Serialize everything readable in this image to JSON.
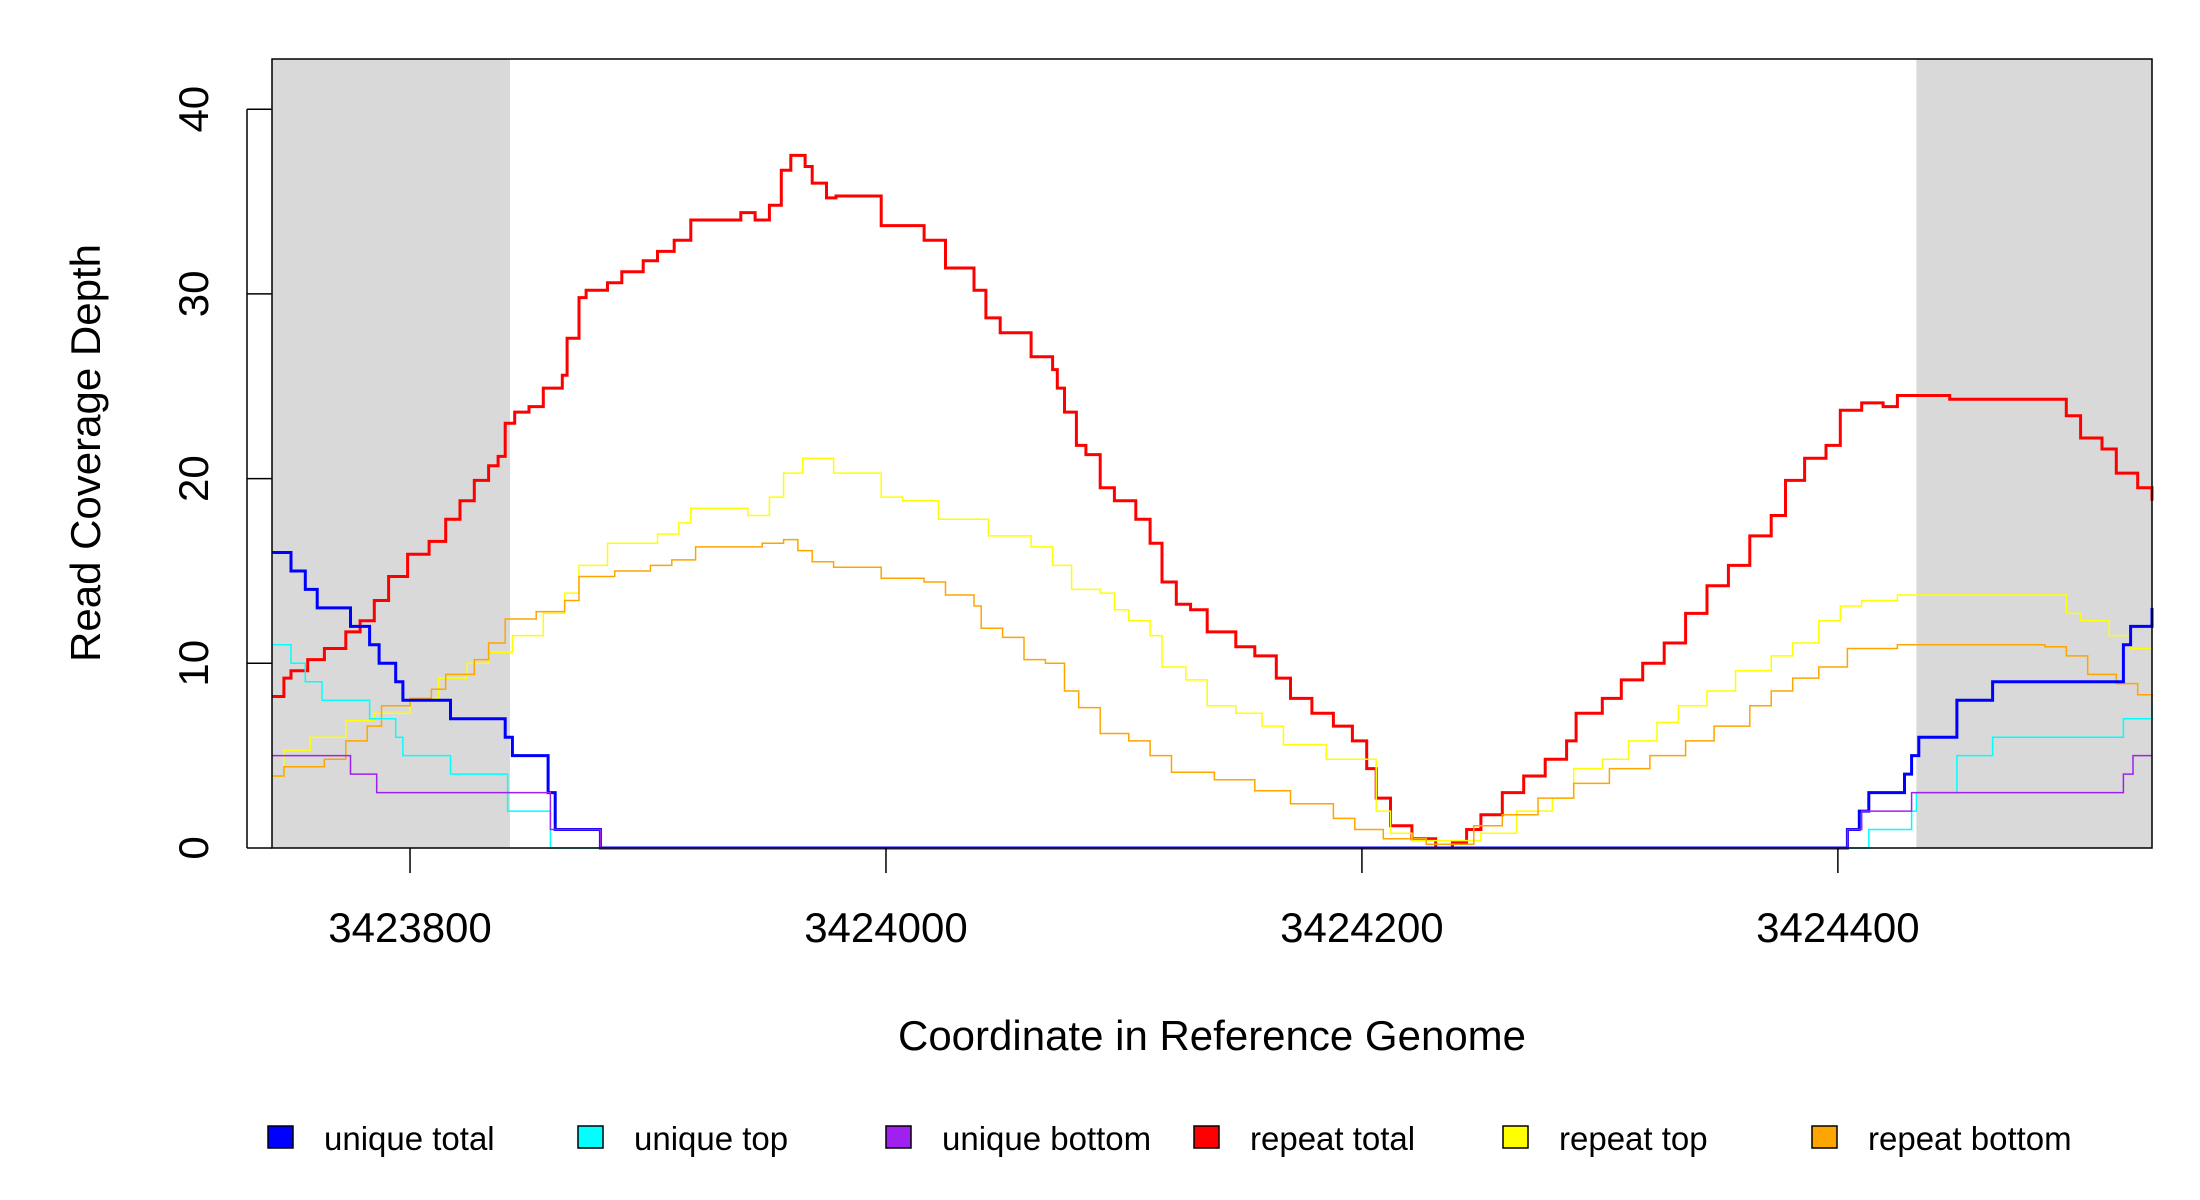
{
  "chart_data": {
    "type": "line",
    "step": true,
    "title": "",
    "xlabel": "Coordinate in Reference Genome",
    "ylabel": "Read Coverage Depth",
    "xlim": [
      3423742,
      3424532
    ],
    "ylim": [
      0,
      42.5
    ],
    "xticks": [
      3423800,
      3424000,
      3424200,
      3424400
    ],
    "xtick_labels": [
      "3423800",
      "3424000",
      "3424200",
      "3424400"
    ],
    "yticks": [
      0,
      10,
      20,
      30,
      40
    ],
    "ytick_labels": [
      "0",
      "10",
      "20",
      "30",
      "40"
    ],
    "grid": false,
    "legend_position": "bottom",
    "shaded_regions": [
      [
        3423742,
        3423842
      ],
      [
        3424433,
        3424532
      ]
    ],
    "shade_color": "#d9d9d9",
    "series": [
      {
        "name": "repeat total",
        "color": "#ff0000",
        "width": 3,
        "points": [
          [
            3423742,
            8.2
          ],
          [
            3423747,
            9.2
          ],
          [
            3423750,
            9.6
          ],
          [
            3423757,
            10.2
          ],
          [
            3423764,
            10.8
          ],
          [
            3423773,
            11.7
          ],
          [
            3423779,
            12.3
          ],
          [
            3423785,
            13.4
          ],
          [
            3423791,
            14.7
          ],
          [
            3423799,
            15.9
          ],
          [
            3423808,
            16.6
          ],
          [
            3423815,
            17.8
          ],
          [
            3423821,
            18.8
          ],
          [
            3423827,
            19.9
          ],
          [
            3423833,
            20.7
          ],
          [
            3423837,
            21.2
          ],
          [
            3423840,
            23.0
          ],
          [
            3423844,
            23.6
          ],
          [
            3423850,
            23.9
          ],
          [
            3423856,
            24.9
          ],
          [
            3423864,
            25.6
          ],
          [
            3423866,
            27.6
          ],
          [
            3423871,
            29.8
          ],
          [
            3423874,
            30.2
          ],
          [
            3423883,
            30.6
          ],
          [
            3423889,
            31.2
          ],
          [
            3423898,
            31.8
          ],
          [
            3423904,
            32.3
          ],
          [
            3423911,
            32.9
          ],
          [
            3423918,
            34.0
          ],
          [
            3423939,
            34.4
          ],
          [
            3423945,
            34.0
          ],
          [
            3423951,
            34.8
          ],
          [
            3423956,
            36.7
          ],
          [
            3423960,
            37.5
          ],
          [
            3423966,
            36.9
          ],
          [
            3423969,
            36.0
          ],
          [
            3423975,
            35.2
          ],
          [
            3423979,
            35.3
          ],
          [
            3423998,
            33.7
          ],
          [
            3424007,
            33.7
          ],
          [
            3424016,
            32.9
          ],
          [
            3424025,
            31.4
          ],
          [
            3424037,
            30.2
          ],
          [
            3424042,
            28.7
          ],
          [
            3424048,
            27.9
          ],
          [
            3424061,
            26.6
          ],
          [
            3424070,
            25.9
          ],
          [
            3424072,
            24.9
          ],
          [
            3424075,
            23.6
          ],
          [
            3424080,
            21.8
          ],
          [
            3424084,
            21.3
          ],
          [
            3424090,
            19.5
          ],
          [
            3424096,
            18.8
          ],
          [
            3424105,
            17.8
          ],
          [
            3424111,
            16.5
          ],
          [
            3424116,
            14.4
          ],
          [
            3424122,
            13.2
          ],
          [
            3424128,
            12.9
          ],
          [
            3424135,
            11.7
          ],
          [
            3424147,
            10.9
          ],
          [
            3424155,
            10.4
          ],
          [
            3424164,
            9.2
          ],
          [
            3424170,
            8.1
          ],
          [
            3424179,
            7.3
          ],
          [
            3424188,
            6.6
          ],
          [
            3424196,
            5.8
          ],
          [
            3424202,
            4.3
          ],
          [
            3424206,
            2.7
          ],
          [
            3424212,
            1.2
          ],
          [
            3424221,
            0.5
          ],
          [
            3424231,
            0.0
          ],
          [
            3424238,
            0.3
          ],
          [
            3424244,
            1.0
          ],
          [
            3424250,
            1.8
          ],
          [
            3424259,
            3.0
          ],
          [
            3424268,
            3.9
          ],
          [
            3424277,
            4.8
          ],
          [
            3424286,
            5.8
          ],
          [
            3424290,
            7.3
          ],
          [
            3424301,
            8.1
          ],
          [
            3424309,
            9.1
          ],
          [
            3424318,
            10.0
          ],
          [
            3424327,
            11.1
          ],
          [
            3424336,
            12.7
          ],
          [
            3424345,
            14.2
          ],
          [
            3424354,
            15.3
          ],
          [
            3424363,
            16.9
          ],
          [
            3424372,
            18.0
          ],
          [
            3424378,
            19.9
          ],
          [
            3424386,
            21.1
          ],
          [
            3424395,
            21.8
          ],
          [
            3424401,
            23.7
          ],
          [
            3424410,
            24.1
          ],
          [
            3424419,
            23.9
          ],
          [
            3424425,
            24.5
          ],
          [
            3424447,
            24.3
          ],
          [
            3424487,
            24.3
          ],
          [
            3424496,
            23.4
          ],
          [
            3424502,
            22.2
          ],
          [
            3424511,
            21.6
          ],
          [
            3424517,
            20.3
          ],
          [
            3424526,
            19.5
          ],
          [
            3424532,
            18.8
          ]
        ]
      },
      {
        "name": "repeat top",
        "color": "#ffff00",
        "width": 1.5,
        "points": [
          [
            3423742,
            3.9
          ],
          [
            3423747,
            5.3
          ],
          [
            3423758,
            6.0
          ],
          [
            3423773,
            6.9
          ],
          [
            3423785,
            7.3
          ],
          [
            3423800,
            8.1
          ],
          [
            3423812,
            9.2
          ],
          [
            3423824,
            10.0
          ],
          [
            3423833,
            10.6
          ],
          [
            3423843,
            11.5
          ],
          [
            3423856,
            12.7
          ],
          [
            3423865,
            13.8
          ],
          [
            3423871,
            15.3
          ],
          [
            3423883,
            16.5
          ],
          [
            3423904,
            17.0
          ],
          [
            3423913,
            17.6
          ],
          [
            3423918,
            18.4
          ],
          [
            3423942,
            18.0
          ],
          [
            3423951,
            19.0
          ],
          [
            3423957,
            20.3
          ],
          [
            3423965,
            21.1
          ],
          [
            3423978,
            20.3
          ],
          [
            3423998,
            19.0
          ],
          [
            3424007,
            18.8
          ],
          [
            3424022,
            17.8
          ],
          [
            3424043,
            16.9
          ],
          [
            3424061,
            16.3
          ],
          [
            3424070,
            15.3
          ],
          [
            3424078,
            14.0
          ],
          [
            3424090,
            13.8
          ],
          [
            3424096,
            12.9
          ],
          [
            3424102,
            12.3
          ],
          [
            3424111,
            11.5
          ],
          [
            3424116,
            9.8
          ],
          [
            3424126,
            9.1
          ],
          [
            3424135,
            7.7
          ],
          [
            3424147,
            7.3
          ],
          [
            3424158,
            6.6
          ],
          [
            3424167,
            5.6
          ],
          [
            3424185,
            4.8
          ],
          [
            3424200,
            4.8
          ],
          [
            3424206,
            2.0
          ],
          [
            3424212,
            0.8
          ],
          [
            3424221,
            0.4
          ],
          [
            3424250,
            0.8
          ],
          [
            3424265,
            2.0
          ],
          [
            3424280,
            2.7
          ],
          [
            3424289,
            4.3
          ],
          [
            3424301,
            4.8
          ],
          [
            3424312,
            5.8
          ],
          [
            3424324,
            6.8
          ],
          [
            3424333,
            7.7
          ],
          [
            3424345,
            8.5
          ],
          [
            3424357,
            9.6
          ],
          [
            3424372,
            10.4
          ],
          [
            3424381,
            11.1
          ],
          [
            3424392,
            12.3
          ],
          [
            3424401,
            13.1
          ],
          [
            3424410,
            13.4
          ],
          [
            3424425,
            13.7
          ],
          [
            3424496,
            12.7
          ],
          [
            3424502,
            12.3
          ],
          [
            3424514,
            11.5
          ],
          [
            3424523,
            10.8
          ],
          [
            3424532,
            10.8
          ]
        ]
      },
      {
        "name": "repeat bottom",
        "color": "#ffa500",
        "width": 1.5,
        "points": [
          [
            3423742,
            3.9
          ],
          [
            3423747,
            4.4
          ],
          [
            3423764,
            4.8
          ],
          [
            3423773,
            5.8
          ],
          [
            3423782,
            6.6
          ],
          [
            3423788,
            7.7
          ],
          [
            3423800,
            8.1
          ],
          [
            3423809,
            8.6
          ],
          [
            3423815,
            9.4
          ],
          [
            3423827,
            10.2
          ],
          [
            3423833,
            11.1
          ],
          [
            3423840,
            12.4
          ],
          [
            3423853,
            12.8
          ],
          [
            3423865,
            13.4
          ],
          [
            3423871,
            14.7
          ],
          [
            3423886,
            15.0
          ],
          [
            3423901,
            15.3
          ],
          [
            3423910,
            15.6
          ],
          [
            3423920,
            16.3
          ],
          [
            3423948,
            16.5
          ],
          [
            3423957,
            16.7
          ],
          [
            3423963,
            16.1
          ],
          [
            3423969,
            15.5
          ],
          [
            3423978,
            15.2
          ],
          [
            3423998,
            14.6
          ],
          [
            3424016,
            14.4
          ],
          [
            3424025,
            13.7
          ],
          [
            3424037,
            13.1
          ],
          [
            3424040,
            11.9
          ],
          [
            3424049,
            11.4
          ],
          [
            3424058,
            10.2
          ],
          [
            3424067,
            10.0
          ],
          [
            3424075,
            8.5
          ],
          [
            3424081,
            7.6
          ],
          [
            3424090,
            6.2
          ],
          [
            3424102,
            5.8
          ],
          [
            3424111,
            5.0
          ],
          [
            3424120,
            4.1
          ],
          [
            3424138,
            3.7
          ],
          [
            3424155,
            3.1
          ],
          [
            3424170,
            2.4
          ],
          [
            3424188,
            1.6
          ],
          [
            3424197,
            1.0
          ],
          [
            3424209,
            0.5
          ],
          [
            3424227,
            0.2
          ],
          [
            3424247,
            1.2
          ],
          [
            3424259,
            1.8
          ],
          [
            3424274,
            2.7
          ],
          [
            3424289,
            3.5
          ],
          [
            3424304,
            4.3
          ],
          [
            3424321,
            5.0
          ],
          [
            3424336,
            5.8
          ],
          [
            3424348,
            6.6
          ],
          [
            3424363,
            7.7
          ],
          [
            3424372,
            8.5
          ],
          [
            3424381,
            9.2
          ],
          [
            3424392,
            9.8
          ],
          [
            3424404,
            10.8
          ],
          [
            3424425,
            11.0
          ],
          [
            3424487,
            10.9
          ],
          [
            3424496,
            10.4
          ],
          [
            3424505,
            9.4
          ],
          [
            3424517,
            8.9
          ],
          [
            3424526,
            8.3
          ],
          [
            3424532,
            8.1
          ]
        ]
      },
      {
        "name": "unique total",
        "color": "#0000ff",
        "width": 3,
        "points": [
          [
            3423742,
            16
          ],
          [
            3423750,
            15
          ],
          [
            3423756,
            14
          ],
          [
            3423761,
            13
          ],
          [
            3423775,
            12
          ],
          [
            3423783,
            11
          ],
          [
            3423787,
            10
          ],
          [
            3423794,
            9
          ],
          [
            3423797,
            8
          ],
          [
            3423817,
            7
          ],
          [
            3423840,
            6
          ],
          [
            3423843,
            5
          ],
          [
            3423858,
            3
          ],
          [
            3423861,
            1
          ],
          [
            3423880,
            0
          ],
          [
            3424404,
            1
          ],
          [
            3424409,
            2
          ],
          [
            3424413,
            3
          ],
          [
            3424428,
            4
          ],
          [
            3424431,
            5
          ],
          [
            3424434,
            6
          ],
          [
            3424450,
            8
          ],
          [
            3424465,
            9
          ],
          [
            3424520,
            11
          ],
          [
            3424523,
            12
          ],
          [
            3424532,
            13
          ]
        ]
      },
      {
        "name": "unique top",
        "color": "#00ffff",
        "width": 1.5,
        "points": [
          [
            3423742,
            11
          ],
          [
            3423750,
            10
          ],
          [
            3423756,
            9
          ],
          [
            3423763,
            8
          ],
          [
            3423783,
            7
          ],
          [
            3423794,
            6
          ],
          [
            3423797,
            5
          ],
          [
            3423817,
            4
          ],
          [
            3423841,
            2
          ],
          [
            3423859,
            0
          ],
          [
            3424413,
            1
          ],
          [
            3424431,
            2
          ],
          [
            3424433,
            3
          ],
          [
            3424450,
            5
          ],
          [
            3424465,
            6
          ],
          [
            3424520,
            7
          ],
          [
            3424532,
            8
          ]
        ]
      },
      {
        "name": "unique bottom",
        "color": "#a020f0",
        "width": 1.5,
        "points": [
          [
            3423742,
            5
          ],
          [
            3423775,
            4
          ],
          [
            3423786,
            3
          ],
          [
            3423859,
            1
          ],
          [
            3423880,
            0
          ],
          [
            3424404,
            1
          ],
          [
            3424410,
            2
          ],
          [
            3424431,
            3
          ],
          [
            3424520,
            4
          ],
          [
            3424524,
            5
          ]
        ]
      }
    ],
    "legend": [
      {
        "label": "unique total",
        "color": "#0000ff"
      },
      {
        "label": "unique top",
        "color": "#00ffff"
      },
      {
        "label": "unique bottom",
        "color": "#a020f0"
      },
      {
        "label": "repeat total",
        "color": "#ff0000"
      },
      {
        "label": "repeat top",
        "color": "#ffff00"
      },
      {
        "label": "repeat bottom",
        "color": "#ffa500"
      }
    ]
  }
}
